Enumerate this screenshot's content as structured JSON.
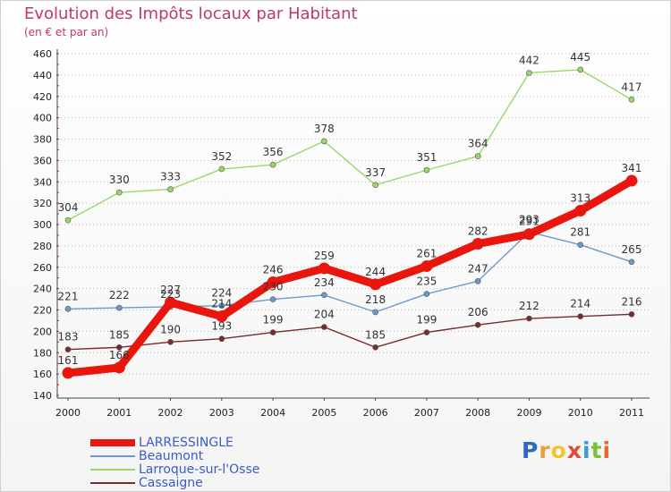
{
  "title": "Evolution des Impôts locaux par Habitant",
  "subtitle": "(en € et par an)",
  "logo": {
    "letters": [
      "P",
      "r",
      "o",
      "x",
      "i",
      "t",
      "i"
    ],
    "colors": [
      "#2f66c7",
      "#e8a03a",
      "#f0c531",
      "#e14a3b",
      "#3b9bd8",
      "#7bbf3a",
      "#e8682a"
    ]
  },
  "chart_data": {
    "type": "line",
    "title": "Evolution des Impôts locaux par Habitant",
    "subtitle": "(en € et par an)",
    "x": [
      "2000",
      "2001",
      "2002",
      "2003",
      "2004",
      "2005",
      "2006",
      "2007",
      "2008",
      "2009",
      "2010",
      "2011"
    ],
    "ylim": [
      140,
      460
    ],
    "yticks": [
      140,
      160,
      180,
      200,
      220,
      240,
      260,
      280,
      300,
      320,
      340,
      360,
      380,
      400,
      420,
      440,
      460
    ],
    "grid": true,
    "legend_position": "bottom-left",
    "series": [
      {
        "name": "LARRESSINGLE",
        "color": "#e8160c",
        "values": [
          161,
          166,
          227,
          214,
          246,
          259,
          244,
          261,
          282,
          291,
          313,
          341
        ]
      },
      {
        "name": "Beaumont",
        "color": "#6a9ad0",
        "values": [
          221,
          222,
          223,
          224,
          230,
          234,
          218,
          235,
          247,
          293,
          281,
          265
        ]
      },
      {
        "name": "Larroque-sur-l'Osse",
        "color": "#98d86a",
        "values": [
          304,
          330,
          333,
          352,
          356,
          378,
          337,
          351,
          364,
          442,
          445,
          417
        ]
      },
      {
        "name": "Cassaigne",
        "color": "#7a2a2a",
        "values": [
          183,
          185,
          190,
          193,
          199,
          204,
          185,
          199,
          206,
          212,
          214,
          216
        ]
      }
    ]
  }
}
